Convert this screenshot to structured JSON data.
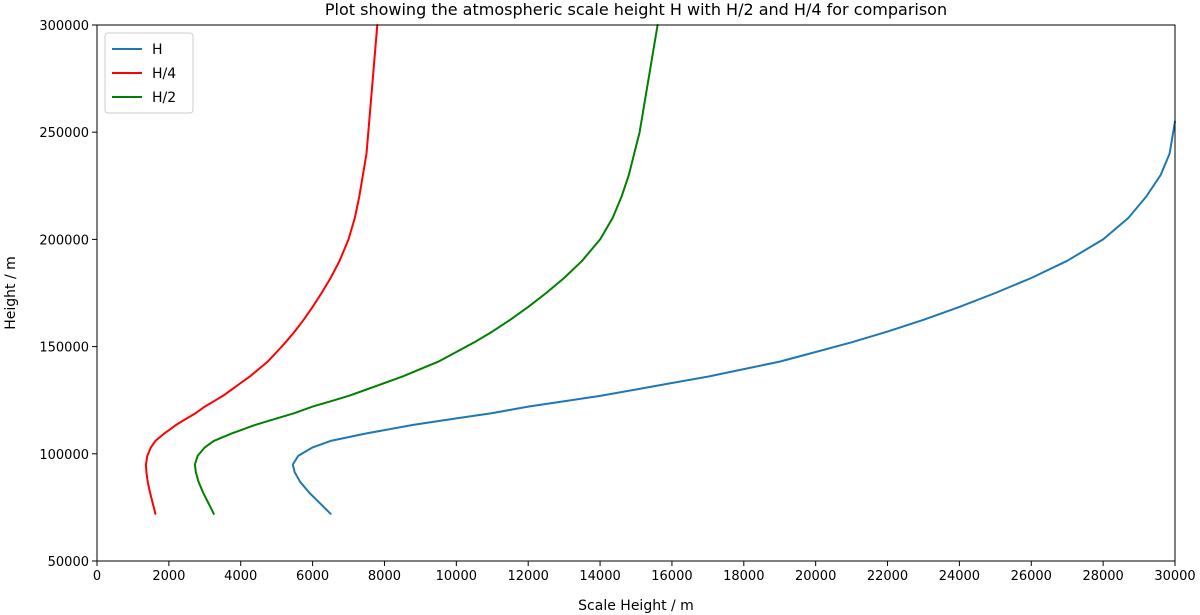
{
  "chart_data": {
    "type": "line",
    "title": "Plot showing the atmospheric scale height H with H/2 and H/4 for comparison",
    "xlabel": "Scale Height / m",
    "ylabel": "Height / m",
    "xlim": [
      0,
      30000
    ],
    "ylim": [
      50000,
      300000
    ],
    "x_ticks": [
      0,
      2000,
      4000,
      6000,
      8000,
      10000,
      12000,
      14000,
      16000,
      18000,
      20000,
      22000,
      24000,
      26000,
      28000,
      30000
    ],
    "y_ticks": [
      50000,
      100000,
      150000,
      200000,
      250000,
      300000
    ],
    "x_tick_labels": [
      "0",
      "2000",
      "4000",
      "6000",
      "8000",
      "10000",
      "12000",
      "14000",
      "16000",
      "18000",
      "20000",
      "22000",
      "24000",
      "26000",
      "28000",
      "30000"
    ],
    "y_tick_labels": [
      "50000",
      "100000",
      "150000",
      "200000",
      "250000",
      "300000"
    ],
    "grid": false,
    "legend_position": "top-left",
    "series": [
      {
        "name": "H",
        "color": "#1f77b4",
        "points": [
          [
            6500,
            72000
          ],
          [
            6200,
            77000
          ],
          [
            5900,
            82000
          ],
          [
            5650,
            87000
          ],
          [
            5500,
            91500
          ],
          [
            5450,
            95000
          ],
          [
            5600,
            99000
          ],
          [
            6000,
            103000
          ],
          [
            6500,
            106000
          ],
          [
            7500,
            109500
          ],
          [
            8800,
            113500
          ],
          [
            10000,
            116500
          ],
          [
            11000,
            119000
          ],
          [
            12000,
            122000
          ],
          [
            13000,
            124500
          ],
          [
            14000,
            127000
          ],
          [
            15000,
            130000
          ],
          [
            16000,
            133000
          ],
          [
            17000,
            136000
          ],
          [
            18000,
            139500
          ],
          [
            19000,
            143000
          ],
          [
            20000,
            147500
          ],
          [
            21000,
            152000
          ],
          [
            22000,
            157000
          ],
          [
            23000,
            162500
          ],
          [
            24000,
            168500
          ],
          [
            25000,
            175000
          ],
          [
            26000,
            182000
          ],
          [
            27000,
            190000
          ],
          [
            28000,
            200000
          ],
          [
            28700,
            210000
          ],
          [
            29200,
            220000
          ],
          [
            29600,
            230000
          ],
          [
            29850,
            240000
          ],
          [
            29950,
            250000
          ],
          [
            30000,
            255000
          ]
        ]
      },
      {
        "name": "H/4",
        "color": "#ff0000",
        "points": [
          [
            1625,
            72000
          ],
          [
            1550,
            77000
          ],
          [
            1475,
            82000
          ],
          [
            1412,
            87000
          ],
          [
            1375,
            91500
          ],
          [
            1362,
            95000
          ],
          [
            1400,
            99000
          ],
          [
            1500,
            103000
          ],
          [
            1625,
            106000
          ],
          [
            1875,
            109500
          ],
          [
            2200,
            113500
          ],
          [
            2500,
            116500
          ],
          [
            2750,
            119000
          ],
          [
            3000,
            122000
          ],
          [
            3250,
            124500
          ],
          [
            3500,
            127000
          ],
          [
            3750,
            130000
          ],
          [
            4000,
            133000
          ],
          [
            4250,
            136000
          ],
          [
            4500,
            139500
          ],
          [
            4750,
            143000
          ],
          [
            5000,
            147500
          ],
          [
            5250,
            152000
          ],
          [
            5500,
            157000
          ],
          [
            5750,
            162500
          ],
          [
            6000,
            168500
          ],
          [
            6250,
            175000
          ],
          [
            6500,
            182000
          ],
          [
            6750,
            190000
          ],
          [
            7000,
            200000
          ],
          [
            7175,
            210000
          ],
          [
            7300,
            220000
          ],
          [
            7400,
            230000
          ],
          [
            7500,
            240000
          ],
          [
            7550,
            250000
          ],
          [
            7600,
            260000
          ],
          [
            7650,
            270000
          ],
          [
            7700,
            280000
          ],
          [
            7750,
            290000
          ],
          [
            7800,
            300000
          ]
        ]
      },
      {
        "name": "H/2",
        "color": "#008000",
        "points": [
          [
            3250,
            72000
          ],
          [
            3100,
            77000
          ],
          [
            2950,
            82000
          ],
          [
            2825,
            87000
          ],
          [
            2750,
            91500
          ],
          [
            2725,
            95000
          ],
          [
            2800,
            99000
          ],
          [
            3000,
            103000
          ],
          [
            3250,
            106000
          ],
          [
            3750,
            109500
          ],
          [
            4400,
            113500
          ],
          [
            5000,
            116500
          ],
          [
            5500,
            119000
          ],
          [
            6000,
            122000
          ],
          [
            6500,
            124500
          ],
          [
            7000,
            127000
          ],
          [
            7500,
            130000
          ],
          [
            8000,
            133000
          ],
          [
            8500,
            136000
          ],
          [
            9000,
            139500
          ],
          [
            9500,
            143000
          ],
          [
            10000,
            147500
          ],
          [
            10500,
            152000
          ],
          [
            11000,
            157000
          ],
          [
            11500,
            162500
          ],
          [
            12000,
            168500
          ],
          [
            12500,
            175000
          ],
          [
            13000,
            182000
          ],
          [
            13500,
            190000
          ],
          [
            14000,
            200000
          ],
          [
            14350,
            210000
          ],
          [
            14600,
            220000
          ],
          [
            14800,
            230000
          ],
          [
            14950,
            240000
          ],
          [
            15100,
            250000
          ],
          [
            15200,
            260000
          ],
          [
            15300,
            270000
          ],
          [
            15400,
            280000
          ],
          [
            15500,
            290000
          ],
          [
            15600,
            300000
          ]
        ]
      }
    ]
  }
}
